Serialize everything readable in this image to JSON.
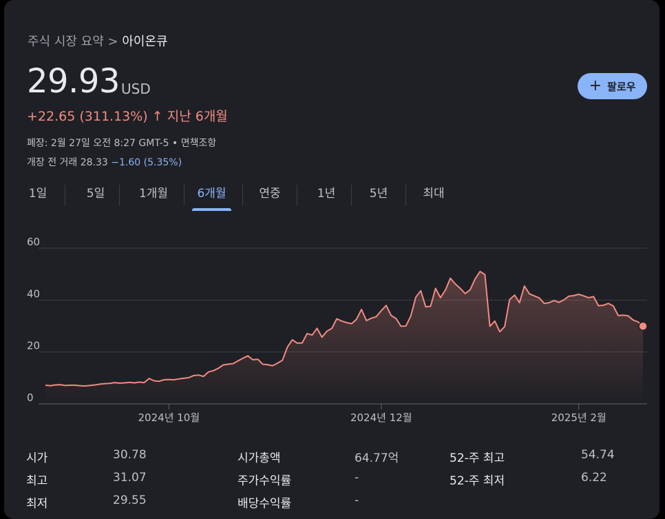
{
  "breadcrumb": {
    "parent": "주식 시장 요약",
    "sep": ">",
    "current": "아이온큐"
  },
  "quote": {
    "price": "29.93",
    "currency": "USD",
    "change": "+22.65 (311.13%)",
    "change_arrow": "↑",
    "period": "지난 6개월",
    "closed_info": "폐장: 2월 27일 오전 8:27 GMT-5 • 면책조항",
    "premarket_label": "개장 전 거래 28.33",
    "premarket_change": "−1.60 (5.35%)"
  },
  "follow_button": {
    "icon": "plus-icon",
    "label": "팔로우"
  },
  "tabs": [
    "1일",
    "5일",
    "1개월",
    "6개월",
    "연중",
    "1년",
    "5년",
    "최대"
  ],
  "active_tab": "6개월",
  "colors": {
    "line": "#f28b82",
    "accent": "#8ab4f8",
    "background": "#1f2025"
  },
  "chart_data": {
    "type": "area",
    "ylim": [
      0,
      60
    ],
    "yticks": [
      "0",
      "20",
      "40",
      "60"
    ],
    "xticks": [
      {
        "label": "2024년 10월",
        "index": 25
      },
      {
        "label": "2024년 12월",
        "index": 68
      },
      {
        "label": "2025년 2월",
        "index": 108
      }
    ],
    "grid": true,
    "series": [
      {
        "values": [
          7.2,
          7.0,
          7.3,
          7.4,
          7.1,
          7.2,
          7.2,
          7.0,
          6.9,
          7.1,
          7.3,
          7.6,
          7.8,
          7.9,
          8.2,
          8.0,
          8.1,
          8.3,
          8.1,
          8.4,
          8.2,
          9.8,
          8.9,
          8.7,
          9.3,
          9.4,
          9.3,
          9.6,
          9.9,
          10.1,
          10.9,
          11.1,
          10.6,
          12.3,
          12.8,
          13.7,
          15.0,
          15.3,
          15.5,
          16.6,
          17.6,
          18.5,
          17.0,
          17.2,
          15.3,
          15.1,
          14.7,
          15.7,
          16.8,
          21.9,
          24.7,
          23.4,
          23.5,
          27.1,
          26.5,
          29.1,
          25.7,
          28.0,
          29.1,
          32.8,
          31.9,
          31.3,
          30.9,
          32.6,
          36.4,
          32.1,
          33.0,
          33.6,
          35.9,
          37.9,
          34.1,
          32.9,
          29.9,
          30.0,
          33.9,
          41.1,
          43.6,
          37.4,
          37.6,
          44.5,
          40.9,
          43.9,
          48.4,
          46.2,
          44.5,
          42.5,
          43.9,
          48.1,
          51.0,
          49.8,
          29.9,
          31.9,
          27.8,
          29.8,
          40.2,
          41.9,
          39.0,
          45.4,
          42.4,
          41.6,
          40.8,
          38.7,
          39.0,
          39.8,
          39.1,
          40.1,
          41.5,
          41.7,
          42.2,
          41.6,
          40.9,
          41.3,
          37.8,
          38.0,
          38.7,
          37.7,
          34.0,
          34.2,
          33.9,
          32.3,
          31.6,
          29.93
        ]
      }
    ]
  },
  "stats": [
    {
      "label": "시가",
      "value": "30.78"
    },
    {
      "label": "최고",
      "value": "31.07"
    },
    {
      "label": "최저",
      "value": "29.55"
    },
    {
      "label": "시가총액",
      "value": "64.77억"
    },
    {
      "label": "주가수익률",
      "value": "-"
    },
    {
      "label": "배당수익률",
      "value": "-"
    },
    {
      "label": "52-주 최고",
      "value": "54.74"
    },
    {
      "label": "52-주 최저",
      "value": "6.22"
    }
  ]
}
